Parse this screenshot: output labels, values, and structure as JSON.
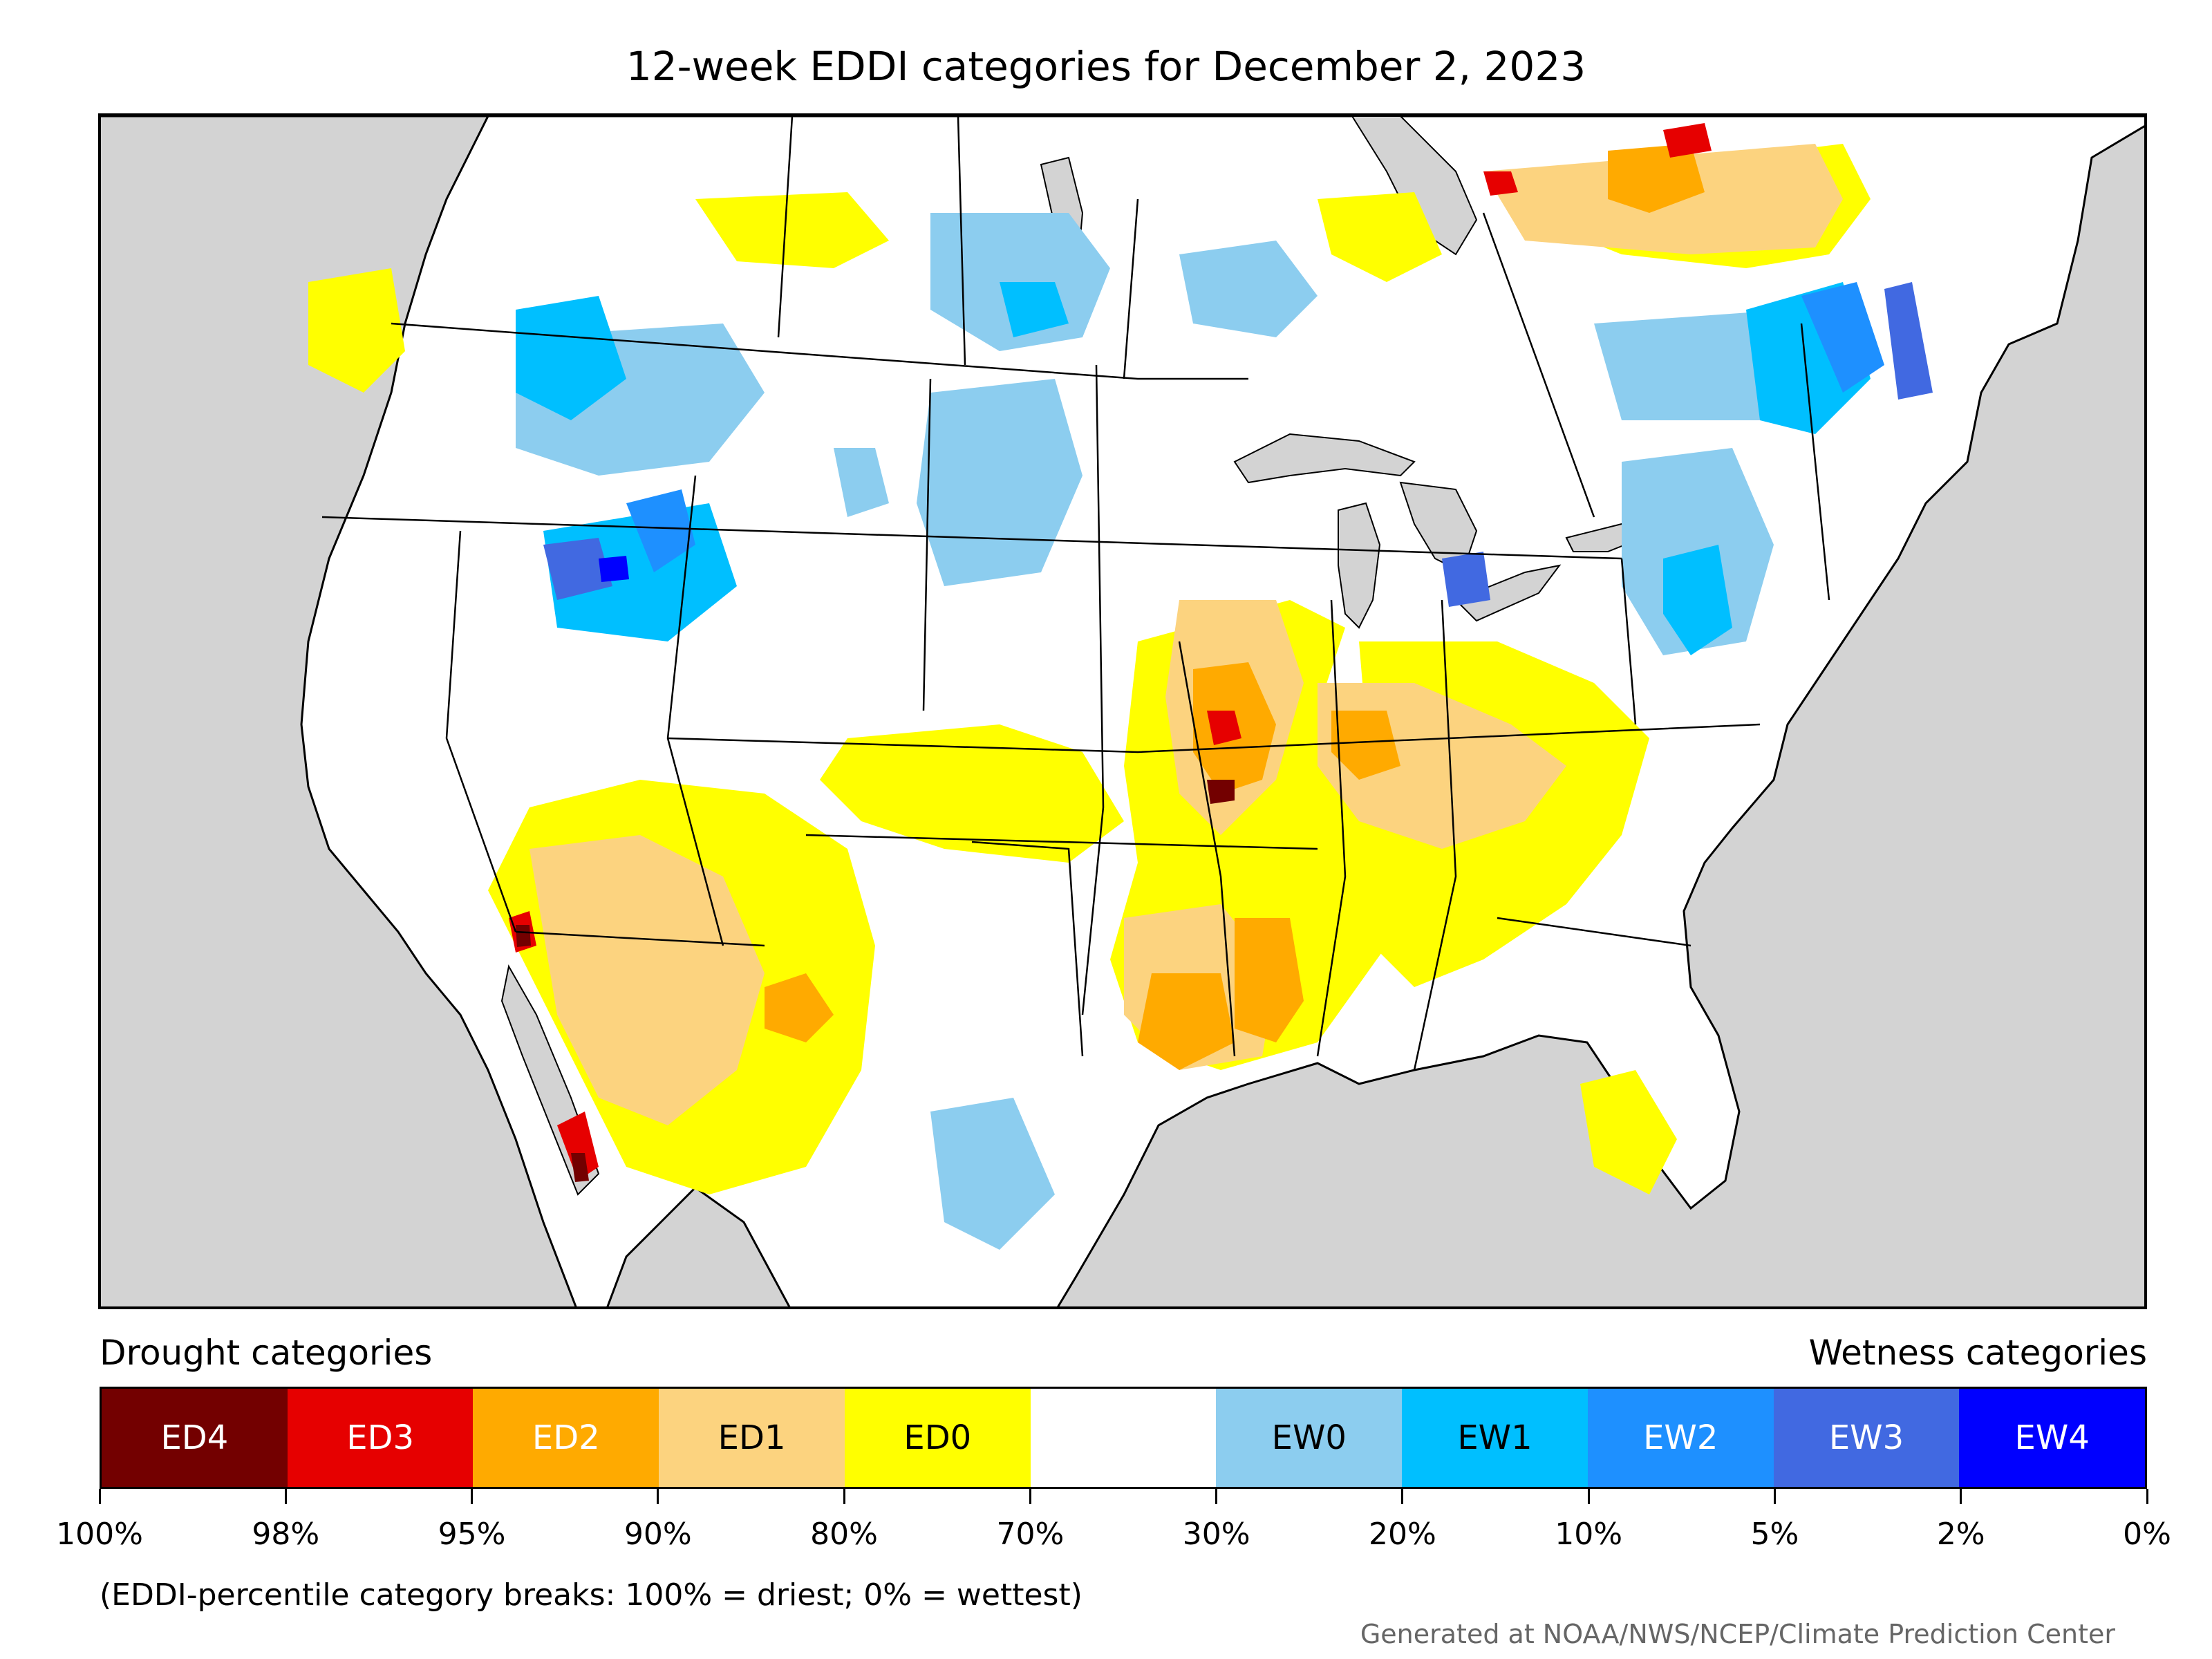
{
  "title": "12-week EDDI categories for December 2, 2023",
  "legend": {
    "drought_heading": "Drought categories",
    "wetness_heading": "Wetness categories",
    "categories": [
      {
        "label": "ED4",
        "color": "#730000",
        "text_color": "#ffffff"
      },
      {
        "label": "ED3",
        "color": "#e60000",
        "text_color": "#ffffff"
      },
      {
        "label": "ED2",
        "color": "#ffaa00",
        "text_color": "#ffffff"
      },
      {
        "label": "ED1",
        "color": "#fcd37f",
        "text_color": "#000000"
      },
      {
        "label": "ED0",
        "color": "#ffff00",
        "text_color": "#000000"
      },
      {
        "label": "",
        "color": "#ffffff",
        "text_color": "#000000"
      },
      {
        "label": "EW0",
        "color": "#8ccdef",
        "text_color": "#000000"
      },
      {
        "label": "EW1",
        "color": "#00bfff",
        "text_color": "#000000"
      },
      {
        "label": "EW2",
        "color": "#1e90ff",
        "text_color": "#ffffff"
      },
      {
        "label": "EW3",
        "color": "#4169e1",
        "text_color": "#ffffff"
      },
      {
        "label": "EW4",
        "color": "#0000ff",
        "text_color": "#ffffff"
      }
    ],
    "breaks": [
      "100%",
      "98%",
      "95%",
      "90%",
      "80%",
      "70%",
      "30%",
      "20%",
      "10%",
      "5%",
      "2%",
      "0%"
    ]
  },
  "note": "(EDDI-percentile category breaks: 100% = driest; 0% = wettest)",
  "credit": "Generated at NOAA/NWS/NCEP/Climate Prediction Center",
  "map": {
    "ocean_color": "#d3d3d3",
    "land_color": "#ffffff",
    "boundary_color": "#000000"
  }
}
